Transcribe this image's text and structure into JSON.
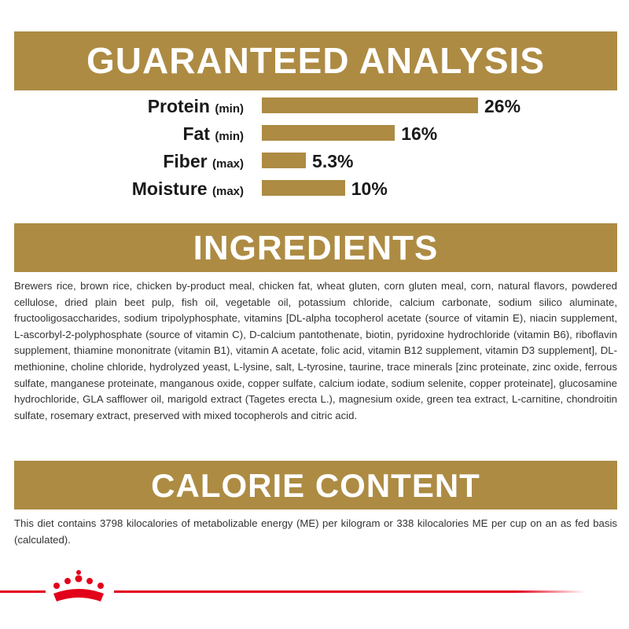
{
  "guaranteed_analysis": {
    "title": "GUARANTEED ANALYSIS",
    "items": [
      {
        "name": "Protein",
        "qualifier": "(min)",
        "value": 26,
        "value_label": "26%"
      },
      {
        "name": "Fat",
        "qualifier": "(min)",
        "value": 16,
        "value_label": "16%"
      },
      {
        "name": "Fiber",
        "qualifier": "(max)",
        "value": 5.3,
        "value_label": "5.3%"
      },
      {
        "name": "Moisture",
        "qualifier": "(max)",
        "value": 10,
        "value_label": "10%"
      }
    ]
  },
  "ingredients": {
    "title": "INGREDIENTS",
    "text": "Brewers rice, brown rice, chicken by-product meal, chicken fat, wheat gluten, corn gluten meal, corn, natural flavors, powdered cellulose, dried plain beet pulp, fish oil, vegetable oil, potassium chloride, calcium carbonate, sodium silico aluminate, fructooligosaccharides, sodium tripolyphosphate, vitamins [DL-alpha tocopherol acetate (source of vitamin E), niacin supplement, L-ascorbyl-2-polyphosphate (source of vitamin C), D-calcium pantothenate, biotin, pyridoxine hydrochloride (vitamin B6), riboflavin supplement, thiamine mononitrate (vitamin B1), vitamin A acetate, folic acid, vitamin B12 supplement, vitamin D3 supplement], DL-methionine, choline chloride, hydrolyzed yeast, L-lysine, salt, L-tyrosine, taurine, trace minerals [zinc proteinate, zinc oxide, ferrous sulfate, manganese proteinate, manganous oxide, copper sulfate, calcium iodate, sodium selenite, copper proteinate], glucosamine hydrochloride, GLA safflower oil, marigold extract (Tagetes erecta L.), magnesium oxide, green tea extract, L-carnitine, chondroitin sulfate, rosemary extract, preserved with mixed tocopherols and citric acid."
  },
  "calorie_content": {
    "title": "CALORIE CONTENT",
    "text": "This diet contains 3798 kilocalories of metabolizable energy (ME) per kilogram or 338 kilocalories ME per cup on an as fed basis (calculated)."
  }
}
